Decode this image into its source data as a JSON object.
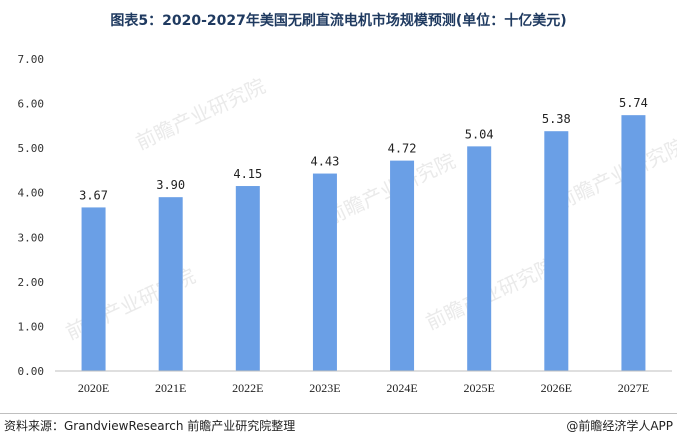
{
  "header": {
    "title": "图表5：2020-2027年美国无刷直流电机市场规模预测(单位：十亿美元)"
  },
  "footer": {
    "source": "资料来源：GrandviewResearch 前瞻产业研究院整理",
    "brand": "@前瞻经济学人APP"
  },
  "watermark": "前瞻产业研究院",
  "colors": {
    "bar": "#6a9fe6",
    "axis": "#bfbfbf"
  },
  "chart_data": {
    "type": "bar",
    "title": "图表5：2020-2027年美国无刷直流电机市场规模预测(单位：十亿美元)",
    "categories": [
      "2020E",
      "2021E",
      "2022E",
      "2023E",
      "2024E",
      "2025E",
      "2026E",
      "2027E"
    ],
    "values": [
      3.67,
      3.9,
      4.15,
      4.43,
      4.72,
      5.04,
      5.38,
      5.74
    ],
    "value_labels": [
      "3.67",
      "3.90",
      "4.15",
      "4.43",
      "4.72",
      "5.04",
      "5.38",
      "5.74"
    ],
    "yticks": [
      "0.00",
      "1.00",
      "2.00",
      "3.00",
      "4.00",
      "5.00",
      "6.00",
      "7.00"
    ],
    "ylim": [
      0,
      7
    ],
    "xlabel": "",
    "ylabel": "",
    "grid": false,
    "legend": "none"
  }
}
